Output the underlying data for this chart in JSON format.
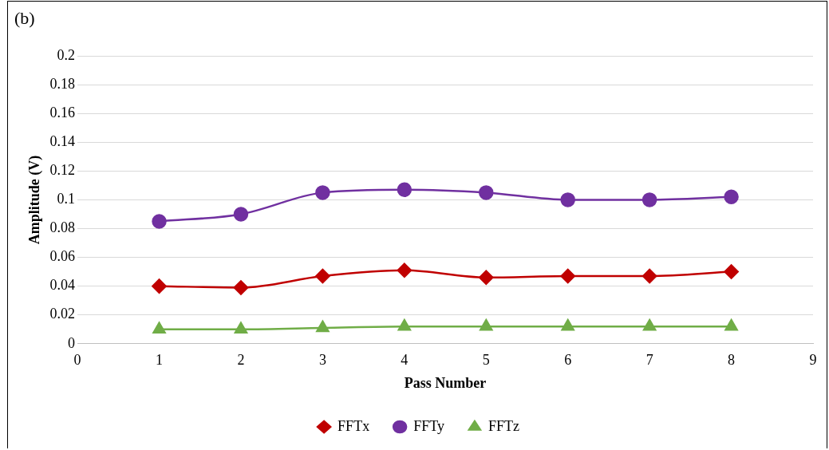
{
  "chart_data": {
    "type": "line",
    "xlabel": "Pass Number",
    "ylabel": "Amplitude (V)",
    "annotations": [
      "(b)"
    ],
    "x": [
      1,
      2,
      3,
      4,
      5,
      6,
      7,
      8
    ],
    "series": [
      {
        "name": "FFTx",
        "color": "#c00000",
        "marker": "diamond",
        "values": [
          0.04,
          0.039,
          0.047,
          0.051,
          0.046,
          0.047,
          0.047,
          0.05
        ]
      },
      {
        "name": "FFTy",
        "color": "#7030a0",
        "marker": "circle",
        "values": [
          0.085,
          0.09,
          0.105,
          0.107,
          0.105,
          0.1,
          0.1,
          0.102
        ]
      },
      {
        "name": "FFTz",
        "color": "#70ad47",
        "marker": "triangle",
        "values": [
          0.01,
          0.01,
          0.011,
          0.012,
          0.012,
          0.012,
          0.012,
          0.012
        ]
      }
    ],
    "xlim": [
      0,
      9
    ],
    "xticks": [
      0,
      1,
      2,
      3,
      4,
      5,
      6,
      7,
      8,
      9
    ],
    "ylim": [
      0,
      0.2
    ],
    "yticks": [
      0,
      0.02,
      0.04,
      0.06,
      0.08,
      0.1,
      0.12,
      0.14,
      0.16,
      0.18,
      0.2
    ],
    "grid": "y",
    "legend": "bottom",
    "line_style": "solid"
  }
}
